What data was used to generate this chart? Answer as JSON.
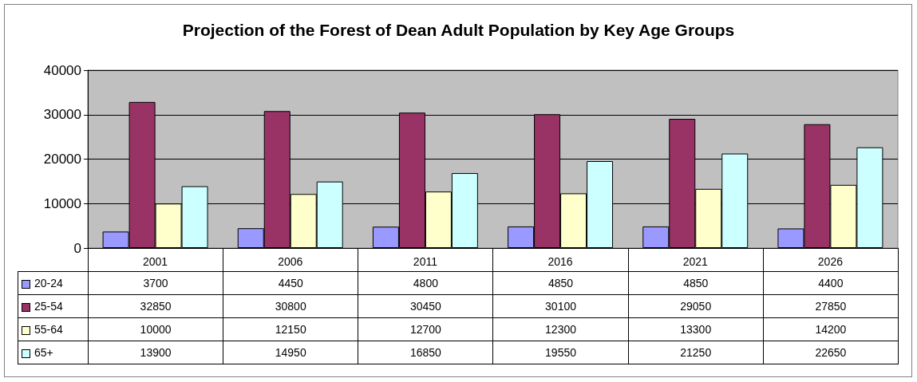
{
  "chart_data": {
    "type": "bar",
    "title": "Projection of the Forest of Dean Adult Population by Key Age Groups",
    "categories": [
      "2001",
      "2006",
      "2011",
      "2016",
      "2021",
      "2026"
    ],
    "series": [
      {
        "name": "20-24",
        "color": "#9999ff",
        "values": [
          3700,
          4450,
          4800,
          4850,
          4850,
          4400
        ]
      },
      {
        "name": "25-54",
        "color": "#993366",
        "values": [
          32850,
          30800,
          30450,
          30100,
          29050,
          27850
        ]
      },
      {
        "name": "55-64",
        "color": "#ffffcc",
        "values": [
          10000,
          12150,
          12700,
          12300,
          13300,
          14200
        ]
      },
      {
        "name": "65+",
        "color": "#ccffff",
        "values": [
          13900,
          14950,
          16850,
          19550,
          21250,
          22650
        ]
      }
    ],
    "ylim": [
      0,
      40000
    ],
    "yticks": [
      0,
      10000,
      20000,
      30000,
      40000
    ],
    "grid": "y",
    "legend": "bottom left",
    "data_labels": true
  }
}
